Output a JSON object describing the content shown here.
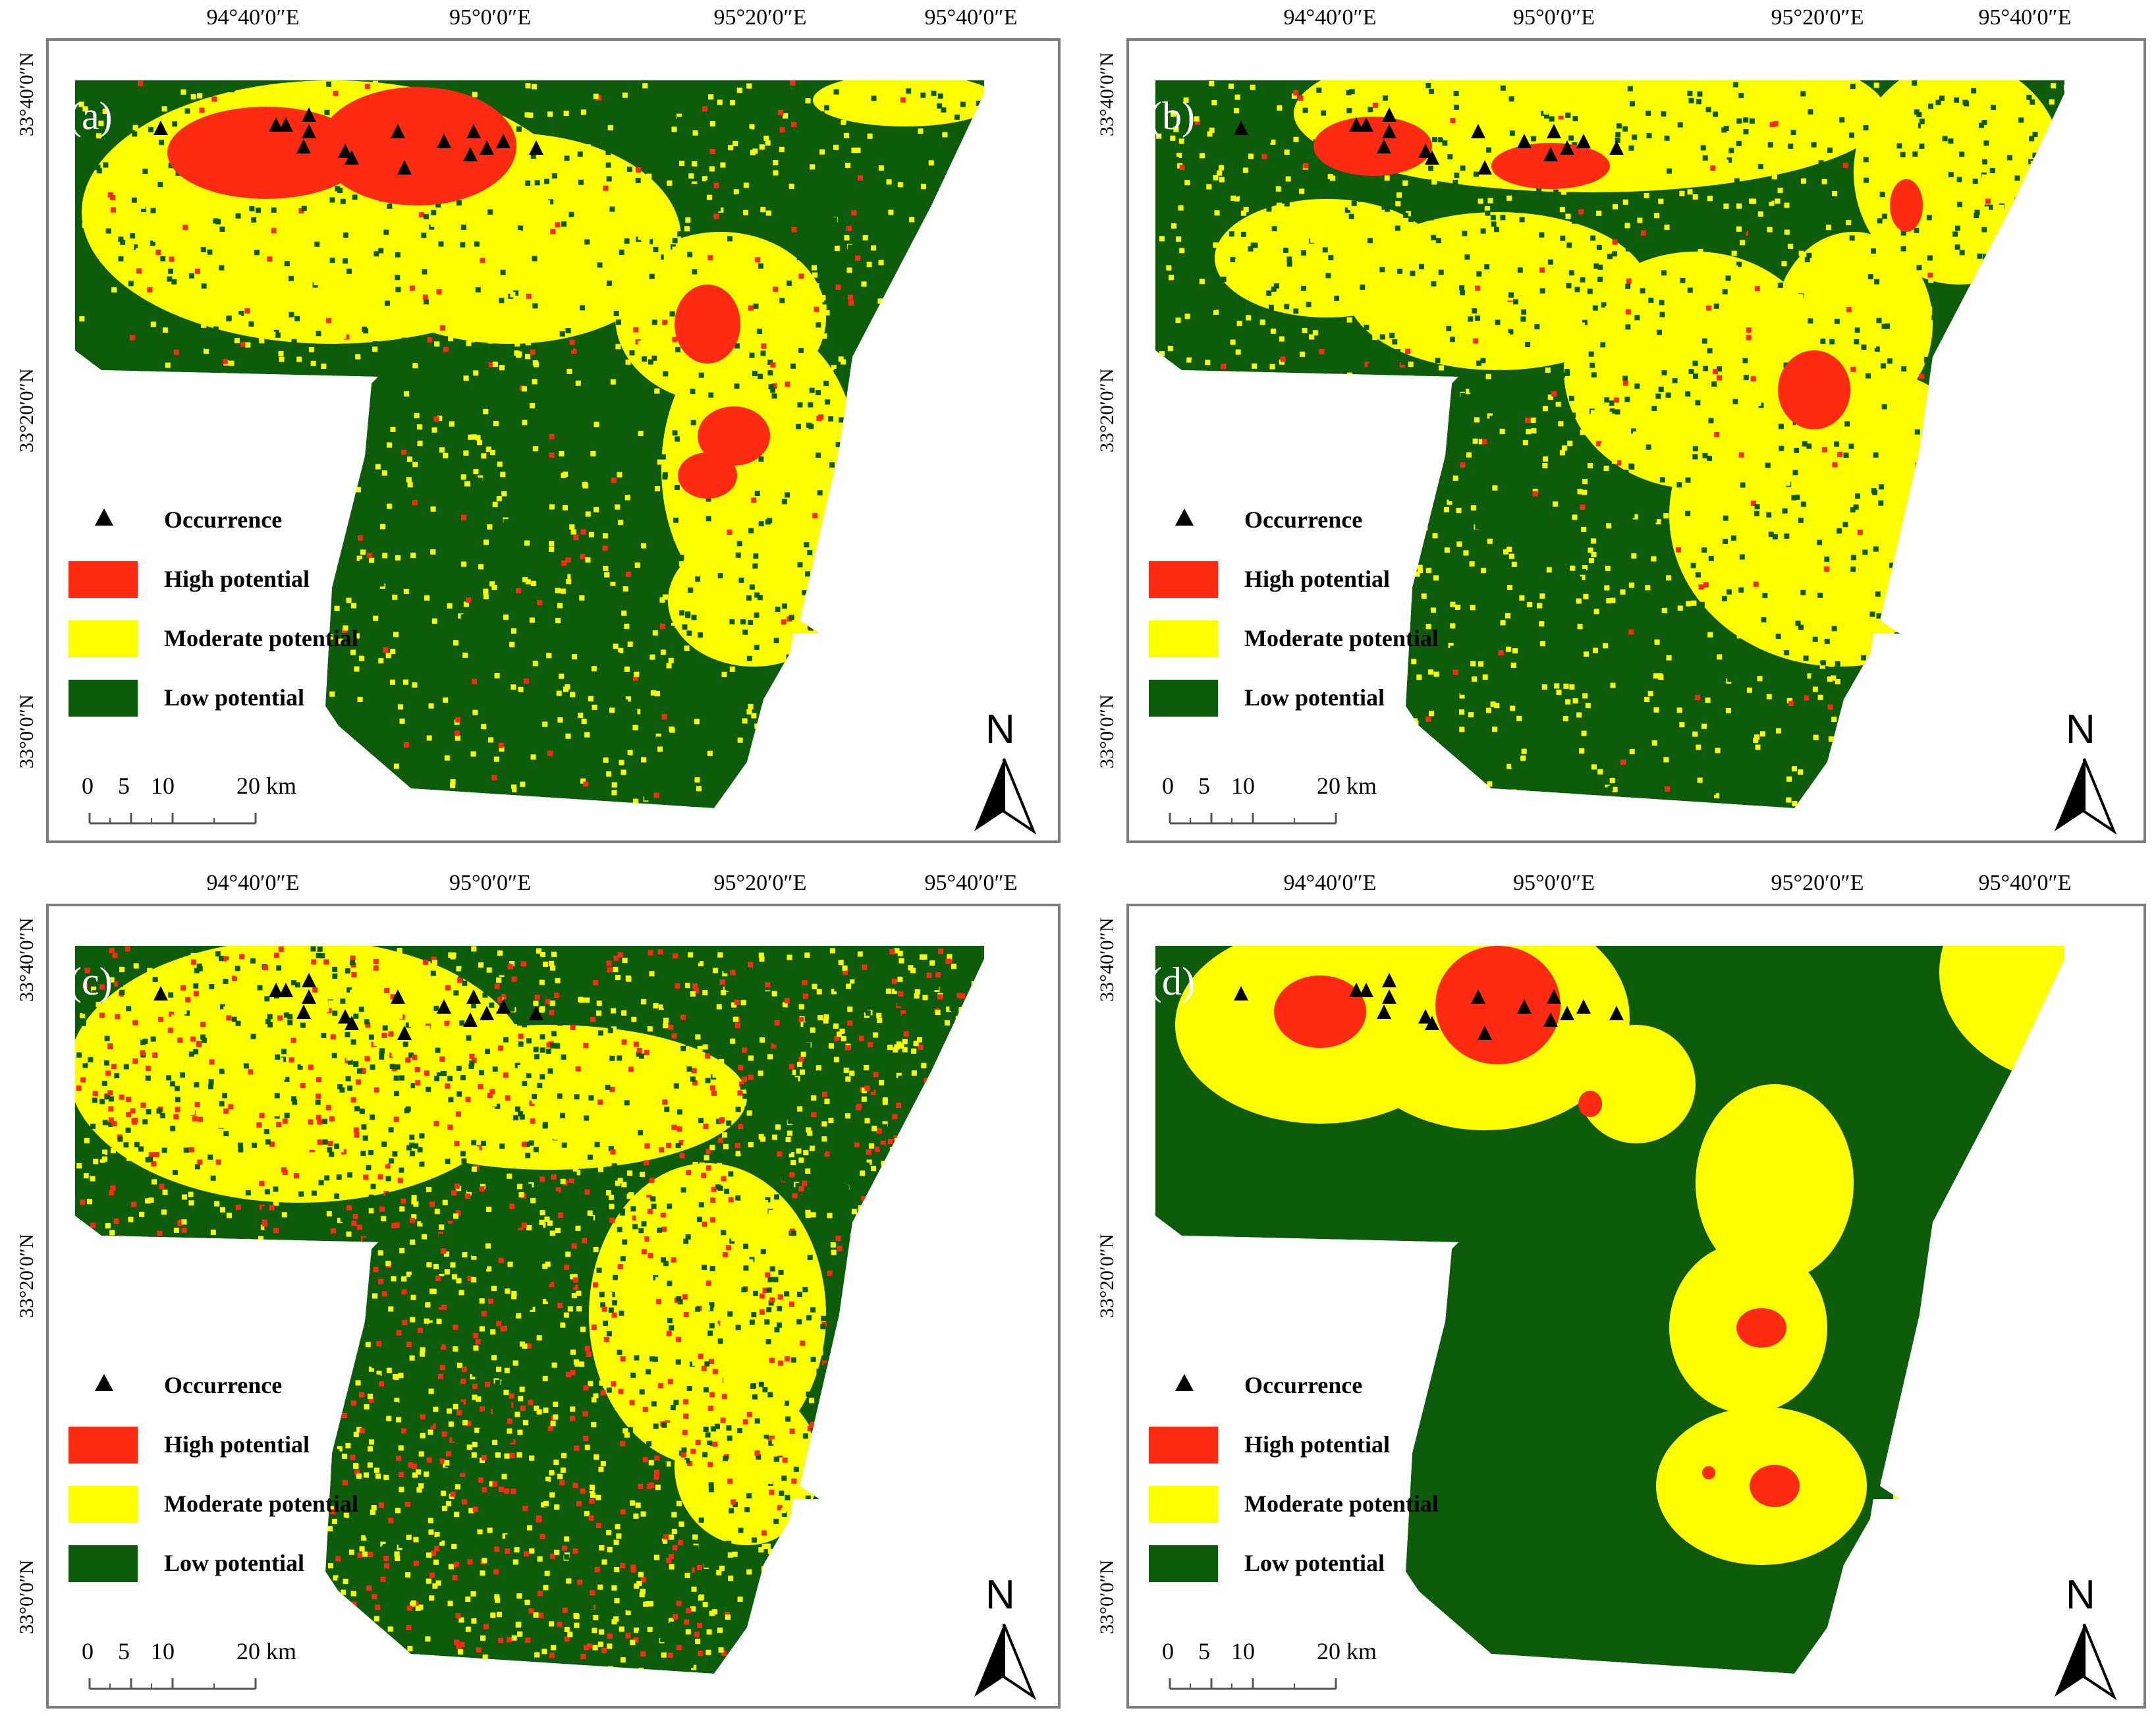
{
  "figure": {
    "panels": [
      {
        "id": "a",
        "label": "(a)"
      },
      {
        "id": "b",
        "label": "(b)"
      },
      {
        "id": "c",
        "label": "(c)"
      },
      {
        "id": "d",
        "label": "(d)"
      }
    ],
    "longitude_labels": [
      "94°40′0″E",
      "95°0′0″E",
      "95°20′0″E",
      "95°40′0″E"
    ],
    "latitude_labels": [
      "33°40′0″N",
      "33°20′0″N",
      "33°0′0″N"
    ],
    "legend": {
      "occurrence": "Occurrence",
      "high": "High potential",
      "moderate": "Moderate potential",
      "low": "Low potential"
    },
    "scale": {
      "ticks": [
        "0",
        "5",
        "10",
        "20 km"
      ]
    },
    "north": "N",
    "colors": {
      "high": "#ff2a12",
      "moderate": "#ffff00",
      "low": "#0c5c0c",
      "occurrence": "#000000"
    }
  }
}
